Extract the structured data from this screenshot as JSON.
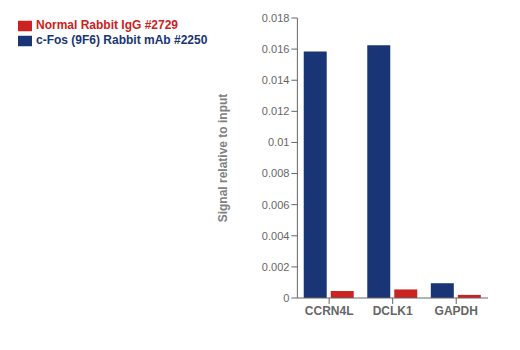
{
  "chart_data": {
    "type": "bar",
    "categories": [
      "CCRN4L",
      "DCLK1",
      "GAPDH"
    ],
    "series": [
      {
        "name": "c-Fos (9F6) Rabbit mAb #2250",
        "color": "#1a3575",
        "values": [
          0.01585,
          0.01625,
          0.00095
        ]
      },
      {
        "name": "Normal Rabbit IgG #2729",
        "color": "#cc2222",
        "values": [
          0.00045,
          0.00055,
          0.0002
        ]
      }
    ],
    "ylabel": "Signal relative to input",
    "ylim": [
      0,
      0.018
    ],
    "yticks": [
      0,
      0.002,
      0.004,
      0.006,
      0.008,
      0.01,
      0.012,
      0.014,
      0.016,
      0.018
    ],
    "legend": "upper left",
    "grid": false
  }
}
